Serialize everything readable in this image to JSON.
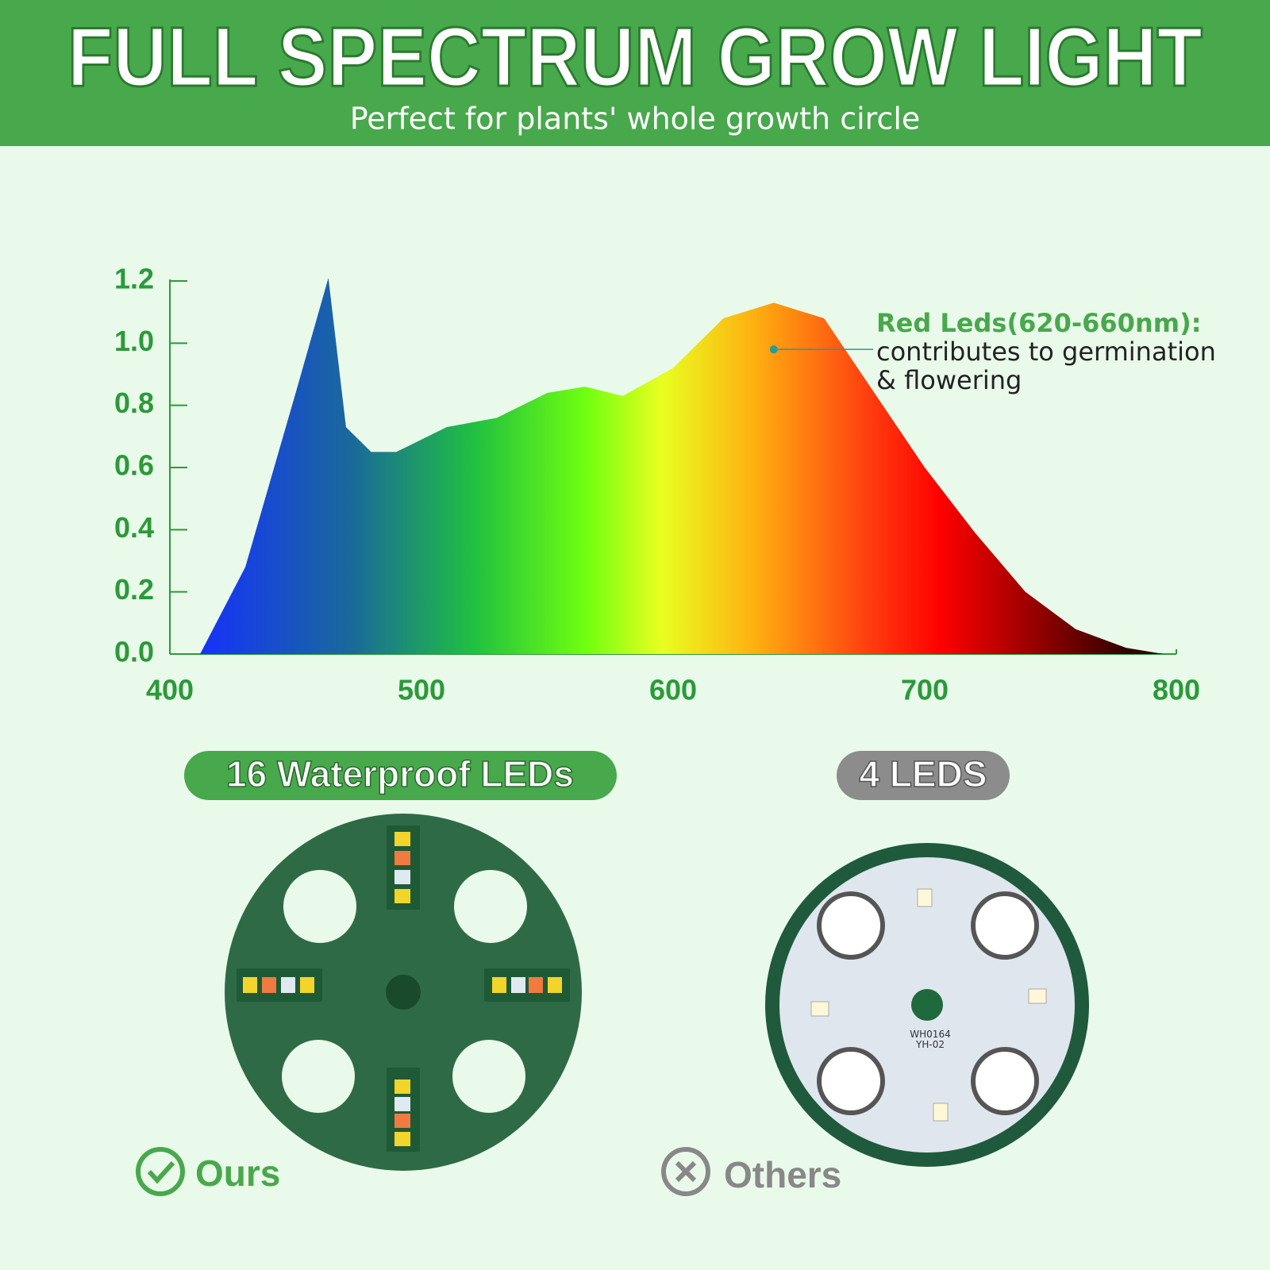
{
  "header": {
    "title": "FULL SPECTRUM GROW LIGHT",
    "subtitle": "Perfect for plants' whole growth circle"
  },
  "chart_data": {
    "type": "area",
    "x": [
      412,
      430,
      450,
      463,
      470,
      480,
      490,
      510,
      530,
      550,
      565,
      580,
      600,
      620,
      640,
      660,
      680,
      700,
      720,
      740,
      760,
      780,
      795
    ],
    "values": [
      0,
      0.28,
      0.84,
      1.21,
      0.73,
      0.65,
      0.65,
      0.73,
      0.76,
      0.84,
      0.86,
      0.83,
      0.92,
      1.08,
      1.13,
      1.08,
      0.84,
      0.6,
      0.39,
      0.2,
      0.08,
      0.02,
      0
    ],
    "xlim": [
      400,
      800
    ],
    "xticks": [
      400,
      500,
      600,
      700,
      800
    ],
    "ylim": [
      0,
      1.2
    ],
    "yticks": [
      {
        "value": 0,
        "label": "0.0"
      },
      0.2,
      0.4,
      0.6,
      0.8,
      {
        "value": 1,
        "label": "1.0"
      },
      1.2
    ],
    "annotation": {
      "title": "Red Leds(620-660nm):",
      "lines": [
        "contributes to germination",
        "& flowering"
      ],
      "x": 640,
      "y": 0.98
    }
  },
  "comparison": {
    "ours": {
      "badge": "16 Waterproof LEDs",
      "label": "Ours"
    },
    "others": {
      "badge": "4 LEDS",
      "label": "Others",
      "pcb_text": [
        "WH0164",
        "YH-02"
      ]
    }
  }
}
